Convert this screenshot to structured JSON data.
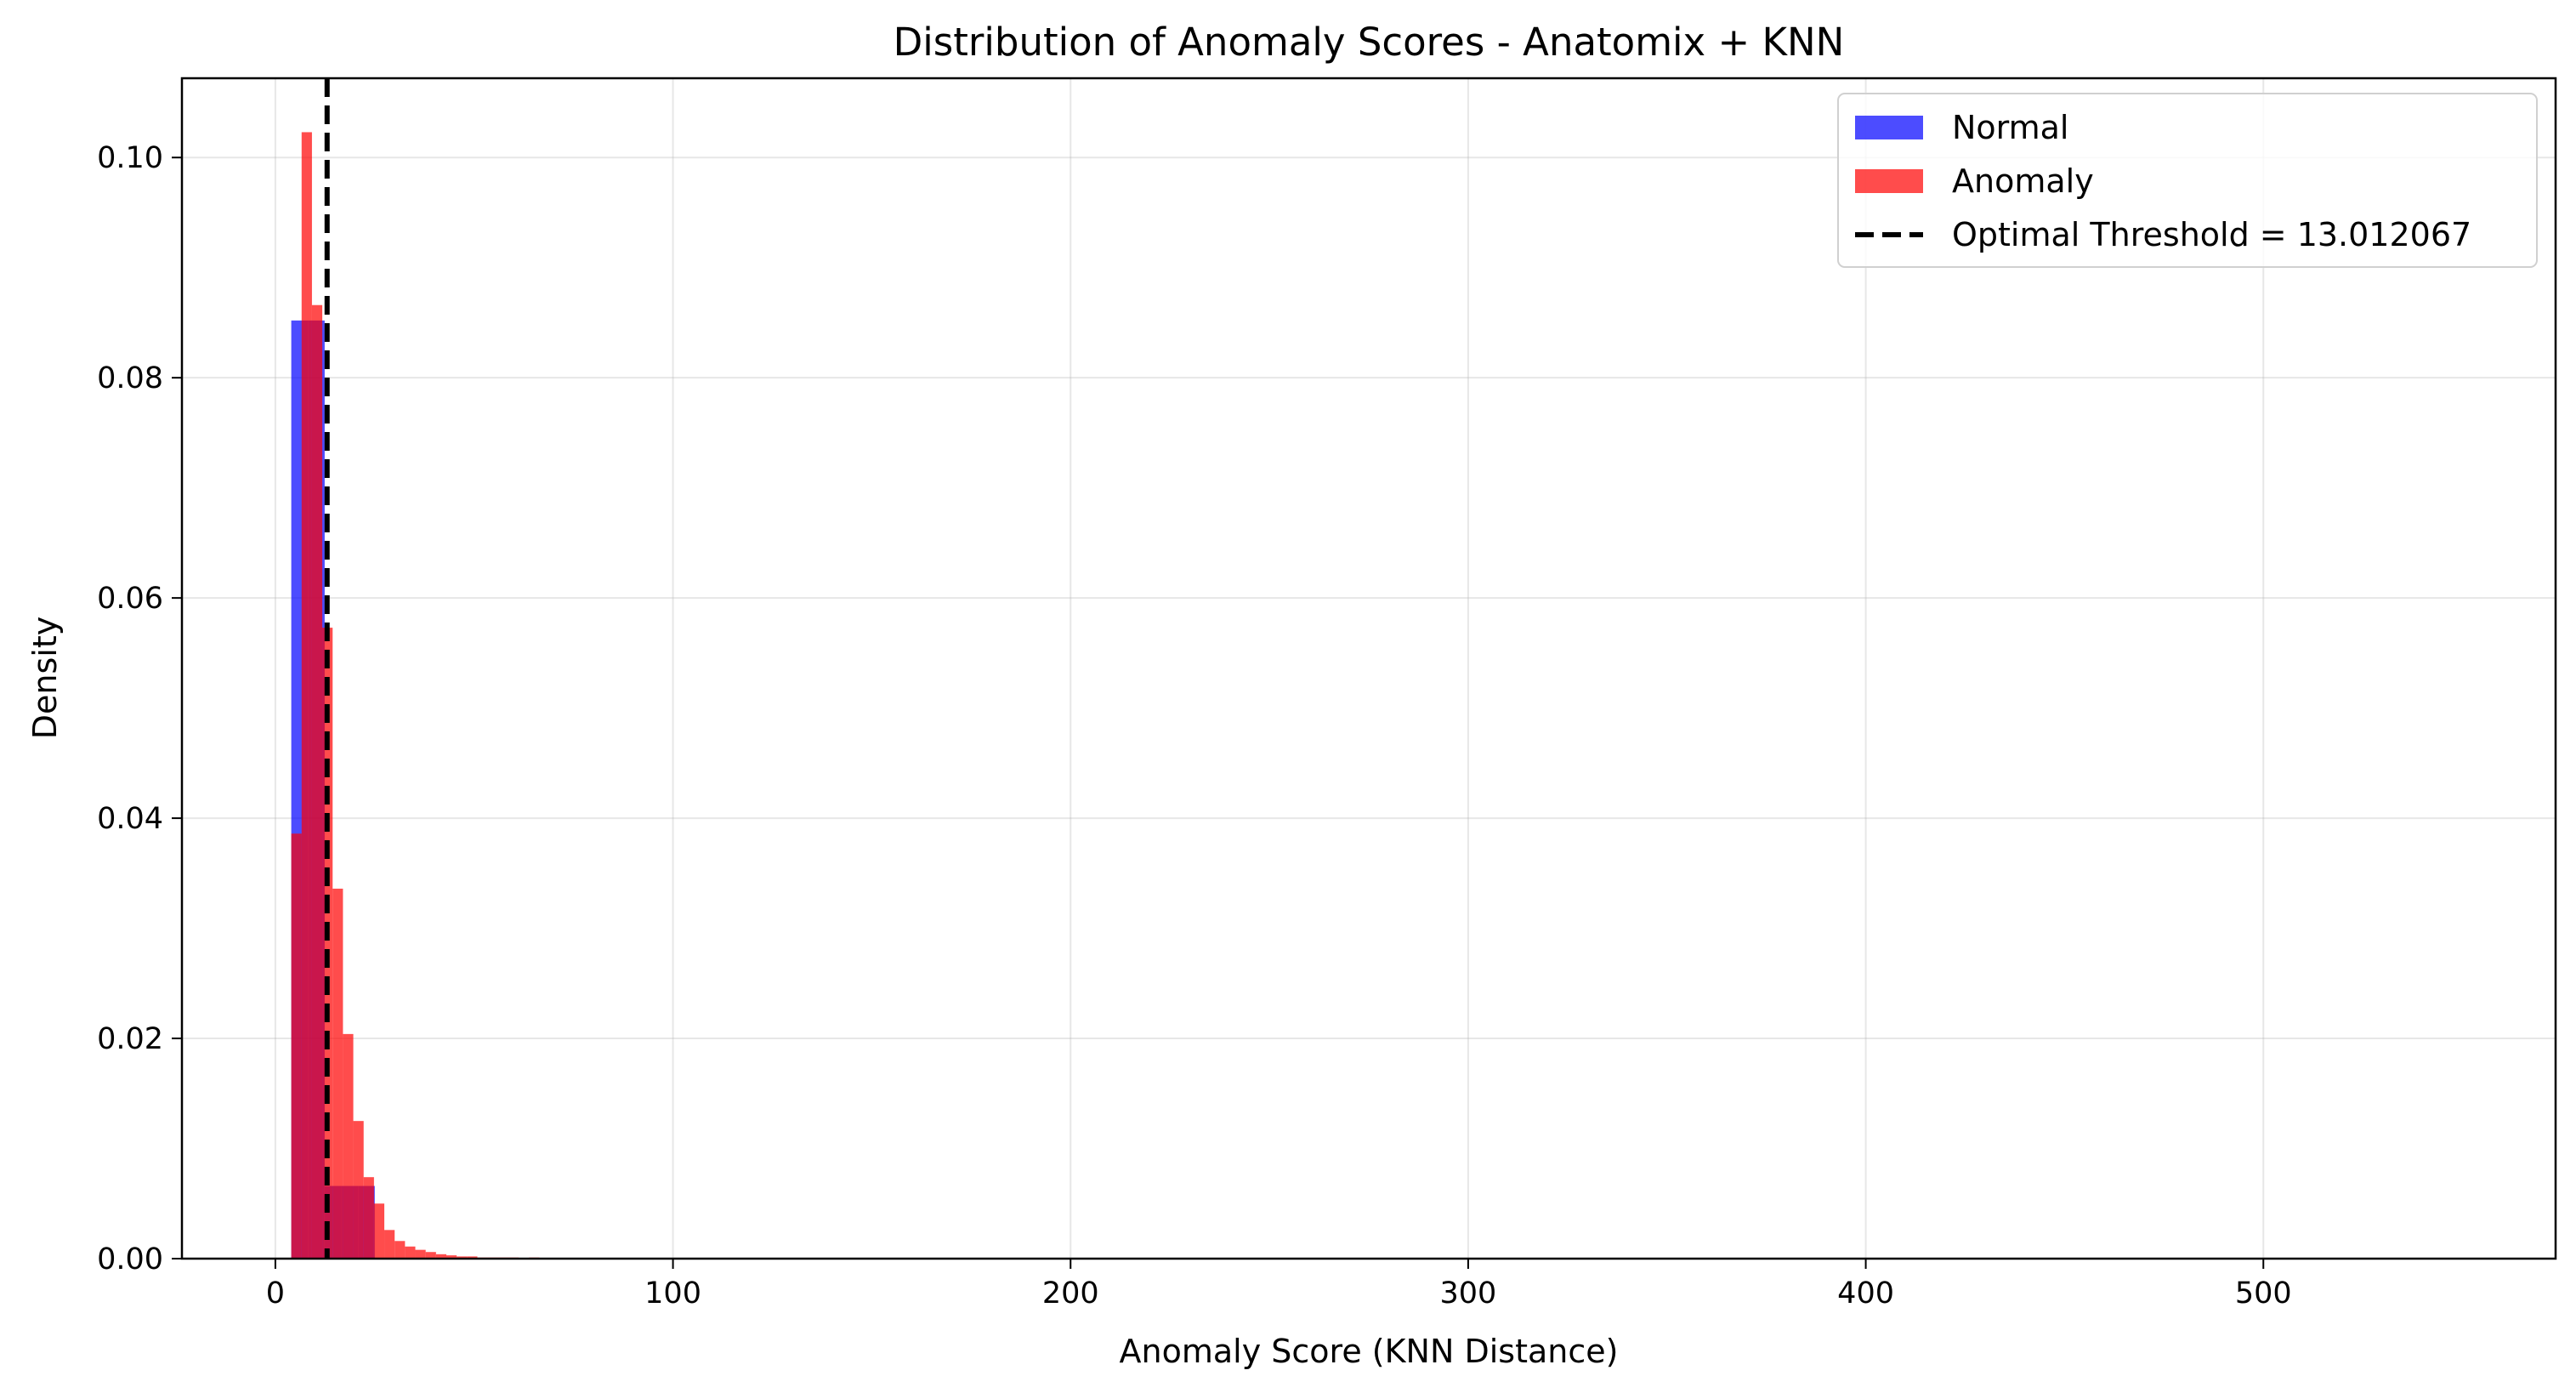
{
  "chart_data": {
    "type": "bar",
    "title": "Distribution of Anomaly Scores - Anatomix + KNN",
    "xlabel": "Anomaly Score (KNN Distance)",
    "ylabel": "Density",
    "xlim": [
      -23.5,
      573.5
    ],
    "ylim": [
      0,
      0.1072
    ],
    "xticks": [
      0,
      100,
      200,
      300,
      400,
      500
    ],
    "xtick_labels": [
      "0",
      "100",
      "200",
      "300",
      "400",
      "500"
    ],
    "yticks": [
      0,
      0.02,
      0.04,
      0.06,
      0.08,
      0.1
    ],
    "ytick_labels": [
      "0.00",
      "0.02",
      "0.04",
      "0.06",
      "0.08",
      "0.10"
    ],
    "grid": true,
    "legend_position": "top-right",
    "series": [
      {
        "name": "Normal",
        "color": "#0000ff",
        "alpha": 0.7,
        "bins": [
          [
            4.0,
            8.2,
            0.0852
          ],
          [
            8.2,
            12.4,
            0.0852
          ],
          [
            12.4,
            16.6,
            0.0066
          ],
          [
            16.6,
            20.8,
            0.0066
          ],
          [
            20.8,
            25.0,
            0.0066
          ]
        ]
      },
      {
        "name": "Anomaly",
        "color": "#ff0000",
        "alpha": 0.7,
        "bins": [
          [
            4.0,
            6.6,
            0.0386
          ],
          [
            6.6,
            9.2,
            0.1023
          ],
          [
            9.2,
            11.8,
            0.0866
          ],
          [
            11.8,
            14.4,
            0.0573
          ],
          [
            14.4,
            17.0,
            0.0336
          ],
          [
            17.0,
            19.6,
            0.0204
          ],
          [
            19.6,
            22.2,
            0.0125
          ],
          [
            22.2,
            24.8,
            0.0074
          ],
          [
            24.8,
            27.4,
            0.005
          ],
          [
            27.4,
            30.0,
            0.0026
          ],
          [
            30.0,
            32.6,
            0.0016
          ],
          [
            32.6,
            35.2,
            0.0011
          ],
          [
            35.2,
            37.8,
            0.0008
          ],
          [
            37.8,
            40.4,
            0.0006
          ],
          [
            40.4,
            43.0,
            0.0004
          ],
          [
            43.0,
            45.6,
            0.0003
          ],
          [
            45.6,
            48.2,
            0.0002
          ],
          [
            48.2,
            50.8,
            0.0002
          ],
          [
            50.8,
            53.4,
            0.0001
          ],
          [
            53.4,
            56.0,
            0.0001
          ],
          [
            56.0,
            58.6,
            0.0001
          ],
          [
            58.6,
            61.2,
            0.0001
          ],
          [
            63.8,
            66.4,
            0.0001
          ]
        ]
      }
    ],
    "threshold": {
      "label": "Optimal Threshold = 13.012067",
      "value": 13.012067,
      "color": "#000000",
      "style": "dashed"
    }
  }
}
